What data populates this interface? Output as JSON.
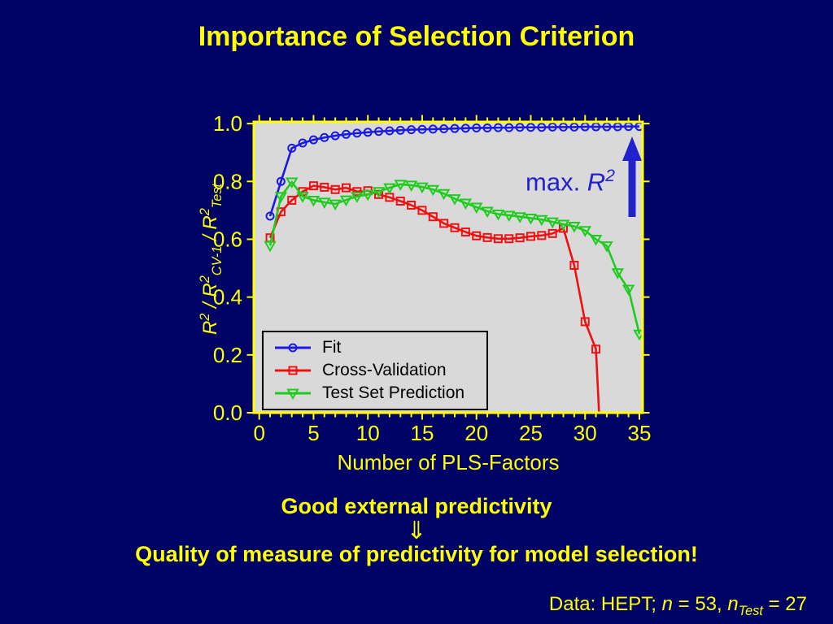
{
  "slide": {
    "title": "Importance of Selection Criterion",
    "bg_color": "#000366",
    "accent_yellow": "#ffff00",
    "footer": {
      "line1": "Good external predictivity",
      "arrow_glyph": "⇓",
      "line2": "Quality of measure of predictivity for model selection!",
      "credit_rich": [
        {
          "t": "Data: HEPT; "
        },
        {
          "t": "n",
          "i": true
        },
        {
          "t": " = 53, "
        },
        {
          "t": "n",
          "i": true
        },
        {
          "t": "Test",
          "i": true,
          "sub": true
        },
        {
          "t": " = 27"
        }
      ]
    }
  },
  "chart_data": {
    "type": "line",
    "title": "",
    "xlabel": "Number of PLS-Factors",
    "ylabel_rich": [
      {
        "t": "R",
        "i": true
      },
      {
        "t": "2",
        "i": true,
        "sup": true
      },
      {
        "t": " / "
      },
      {
        "t": "R",
        "i": true
      },
      {
        "t": "2",
        "i": true,
        "sup": true
      },
      {
        "t": "CV-1",
        "i": true,
        "sub": true
      },
      {
        "t": " / "
      },
      {
        "t": "R",
        "i": true
      },
      {
        "t": "2",
        "i": true,
        "sup": true
      },
      {
        "t": "Test",
        "i": true,
        "sub": true
      }
    ],
    "xlim": [
      -0.5,
      35.3
    ],
    "ylim": [
      0,
      1.006
    ],
    "x_ticks": [
      0,
      5,
      10,
      15,
      20,
      25,
      30,
      35
    ],
    "y_ticks": [
      "1.0",
      "0.8",
      "0.6",
      "0.4",
      "0.2",
      "0.0"
    ],
    "grid": false,
    "plot_bg": "#d9d9d9",
    "axis_color": "#ffff00",
    "legend_position": "lower-left-inside",
    "annotation": {
      "rich": [
        {
          "t": "max. "
        },
        {
          "t": "R",
          "i": true
        },
        {
          "t": "2",
          "i": true,
          "sup": true
        }
      ],
      "arrow": "up",
      "color": "#2222cc"
    },
    "series": [
      {
        "name": "Fit",
        "color": "#1a1ae0",
        "marker": "circle",
        "x": [
          1,
          2,
          3,
          4,
          5,
          6,
          7,
          8,
          9,
          10,
          11,
          12,
          13,
          14,
          15,
          16,
          17,
          18,
          19,
          20,
          21,
          22,
          23,
          24,
          25,
          26,
          27,
          28,
          29,
          30,
          31,
          32,
          33,
          34,
          35
        ],
        "y": [
          0.68,
          0.8,
          0.915,
          0.933,
          0.944,
          0.952,
          0.958,
          0.963,
          0.967,
          0.97,
          0.973,
          0.975,
          0.977,
          0.979,
          0.98,
          0.981,
          0.982,
          0.983,
          0.984,
          0.985,
          0.985,
          0.986,
          0.986,
          0.987,
          0.987,
          0.987,
          0.988,
          0.988,
          0.988,
          0.989,
          0.989,
          0.989,
          0.989,
          0.99,
          0.99
        ]
      },
      {
        "name": "Cross-Validation",
        "color": "#ee1111",
        "marker": "square",
        "x": [
          1,
          2,
          3,
          4,
          5,
          6,
          7,
          8,
          9,
          10,
          11,
          12,
          13,
          14,
          15,
          16,
          17,
          18,
          19,
          20,
          21,
          22,
          23,
          24,
          25,
          26,
          27,
          28,
          29,
          30,
          31,
          32
        ],
        "y": [
          0.605,
          0.695,
          0.735,
          0.765,
          0.785,
          0.78,
          0.772,
          0.778,
          0.765,
          0.768,
          0.755,
          0.745,
          0.732,
          0.718,
          0.7,
          0.678,
          0.655,
          0.64,
          0.625,
          0.612,
          0.606,
          0.602,
          0.602,
          0.605,
          0.61,
          0.613,
          0.62,
          0.638,
          0.51,
          0.315,
          0.22,
          -0.55
        ]
      },
      {
        "name": "Test Set Prediction",
        "color": "#1ecc1e",
        "marker": "triangle-down",
        "x": [
          1,
          2,
          3,
          4,
          5,
          6,
          7,
          8,
          9,
          10,
          11,
          12,
          13,
          14,
          15,
          16,
          17,
          18,
          19,
          20,
          21,
          22,
          23,
          24,
          25,
          26,
          27,
          28,
          29,
          30,
          31,
          32,
          33,
          34,
          35
        ],
        "y": [
          0.578,
          0.748,
          0.798,
          0.748,
          0.735,
          0.728,
          0.722,
          0.736,
          0.748,
          0.755,
          0.765,
          0.778,
          0.79,
          0.787,
          0.781,
          0.772,
          0.758,
          0.74,
          0.725,
          0.711,
          0.697,
          0.687,
          0.683,
          0.678,
          0.673,
          0.668,
          0.66,
          0.652,
          0.645,
          0.63,
          0.6,
          0.577,
          0.484,
          0.427,
          0.272
        ]
      }
    ]
  }
}
